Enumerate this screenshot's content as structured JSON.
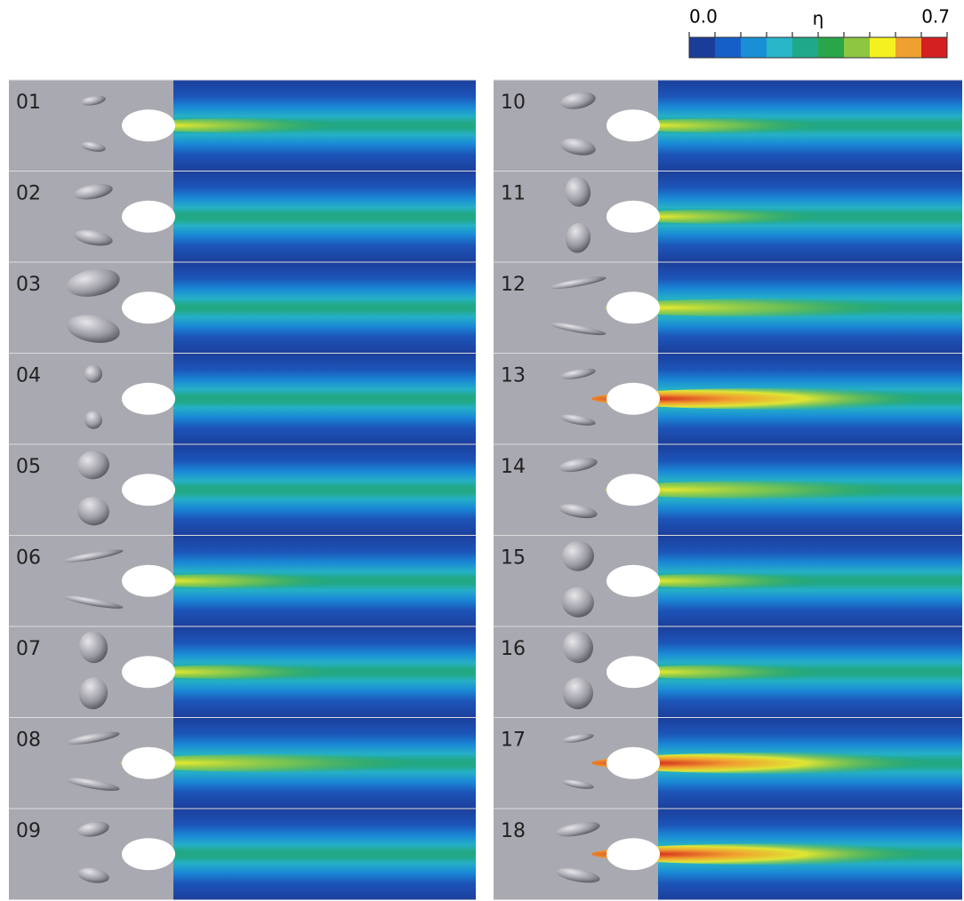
{
  "colorbar": {
    "min_label": "0.0",
    "symbol": "η",
    "max_label": "0.7"
  },
  "panels": [
    "01",
    "02",
    "03",
    "04",
    "05",
    "06",
    "07",
    "08",
    "09",
    "10",
    "11",
    "12",
    "13",
    "14",
    "15",
    "16",
    "17",
    "18"
  ]
}
